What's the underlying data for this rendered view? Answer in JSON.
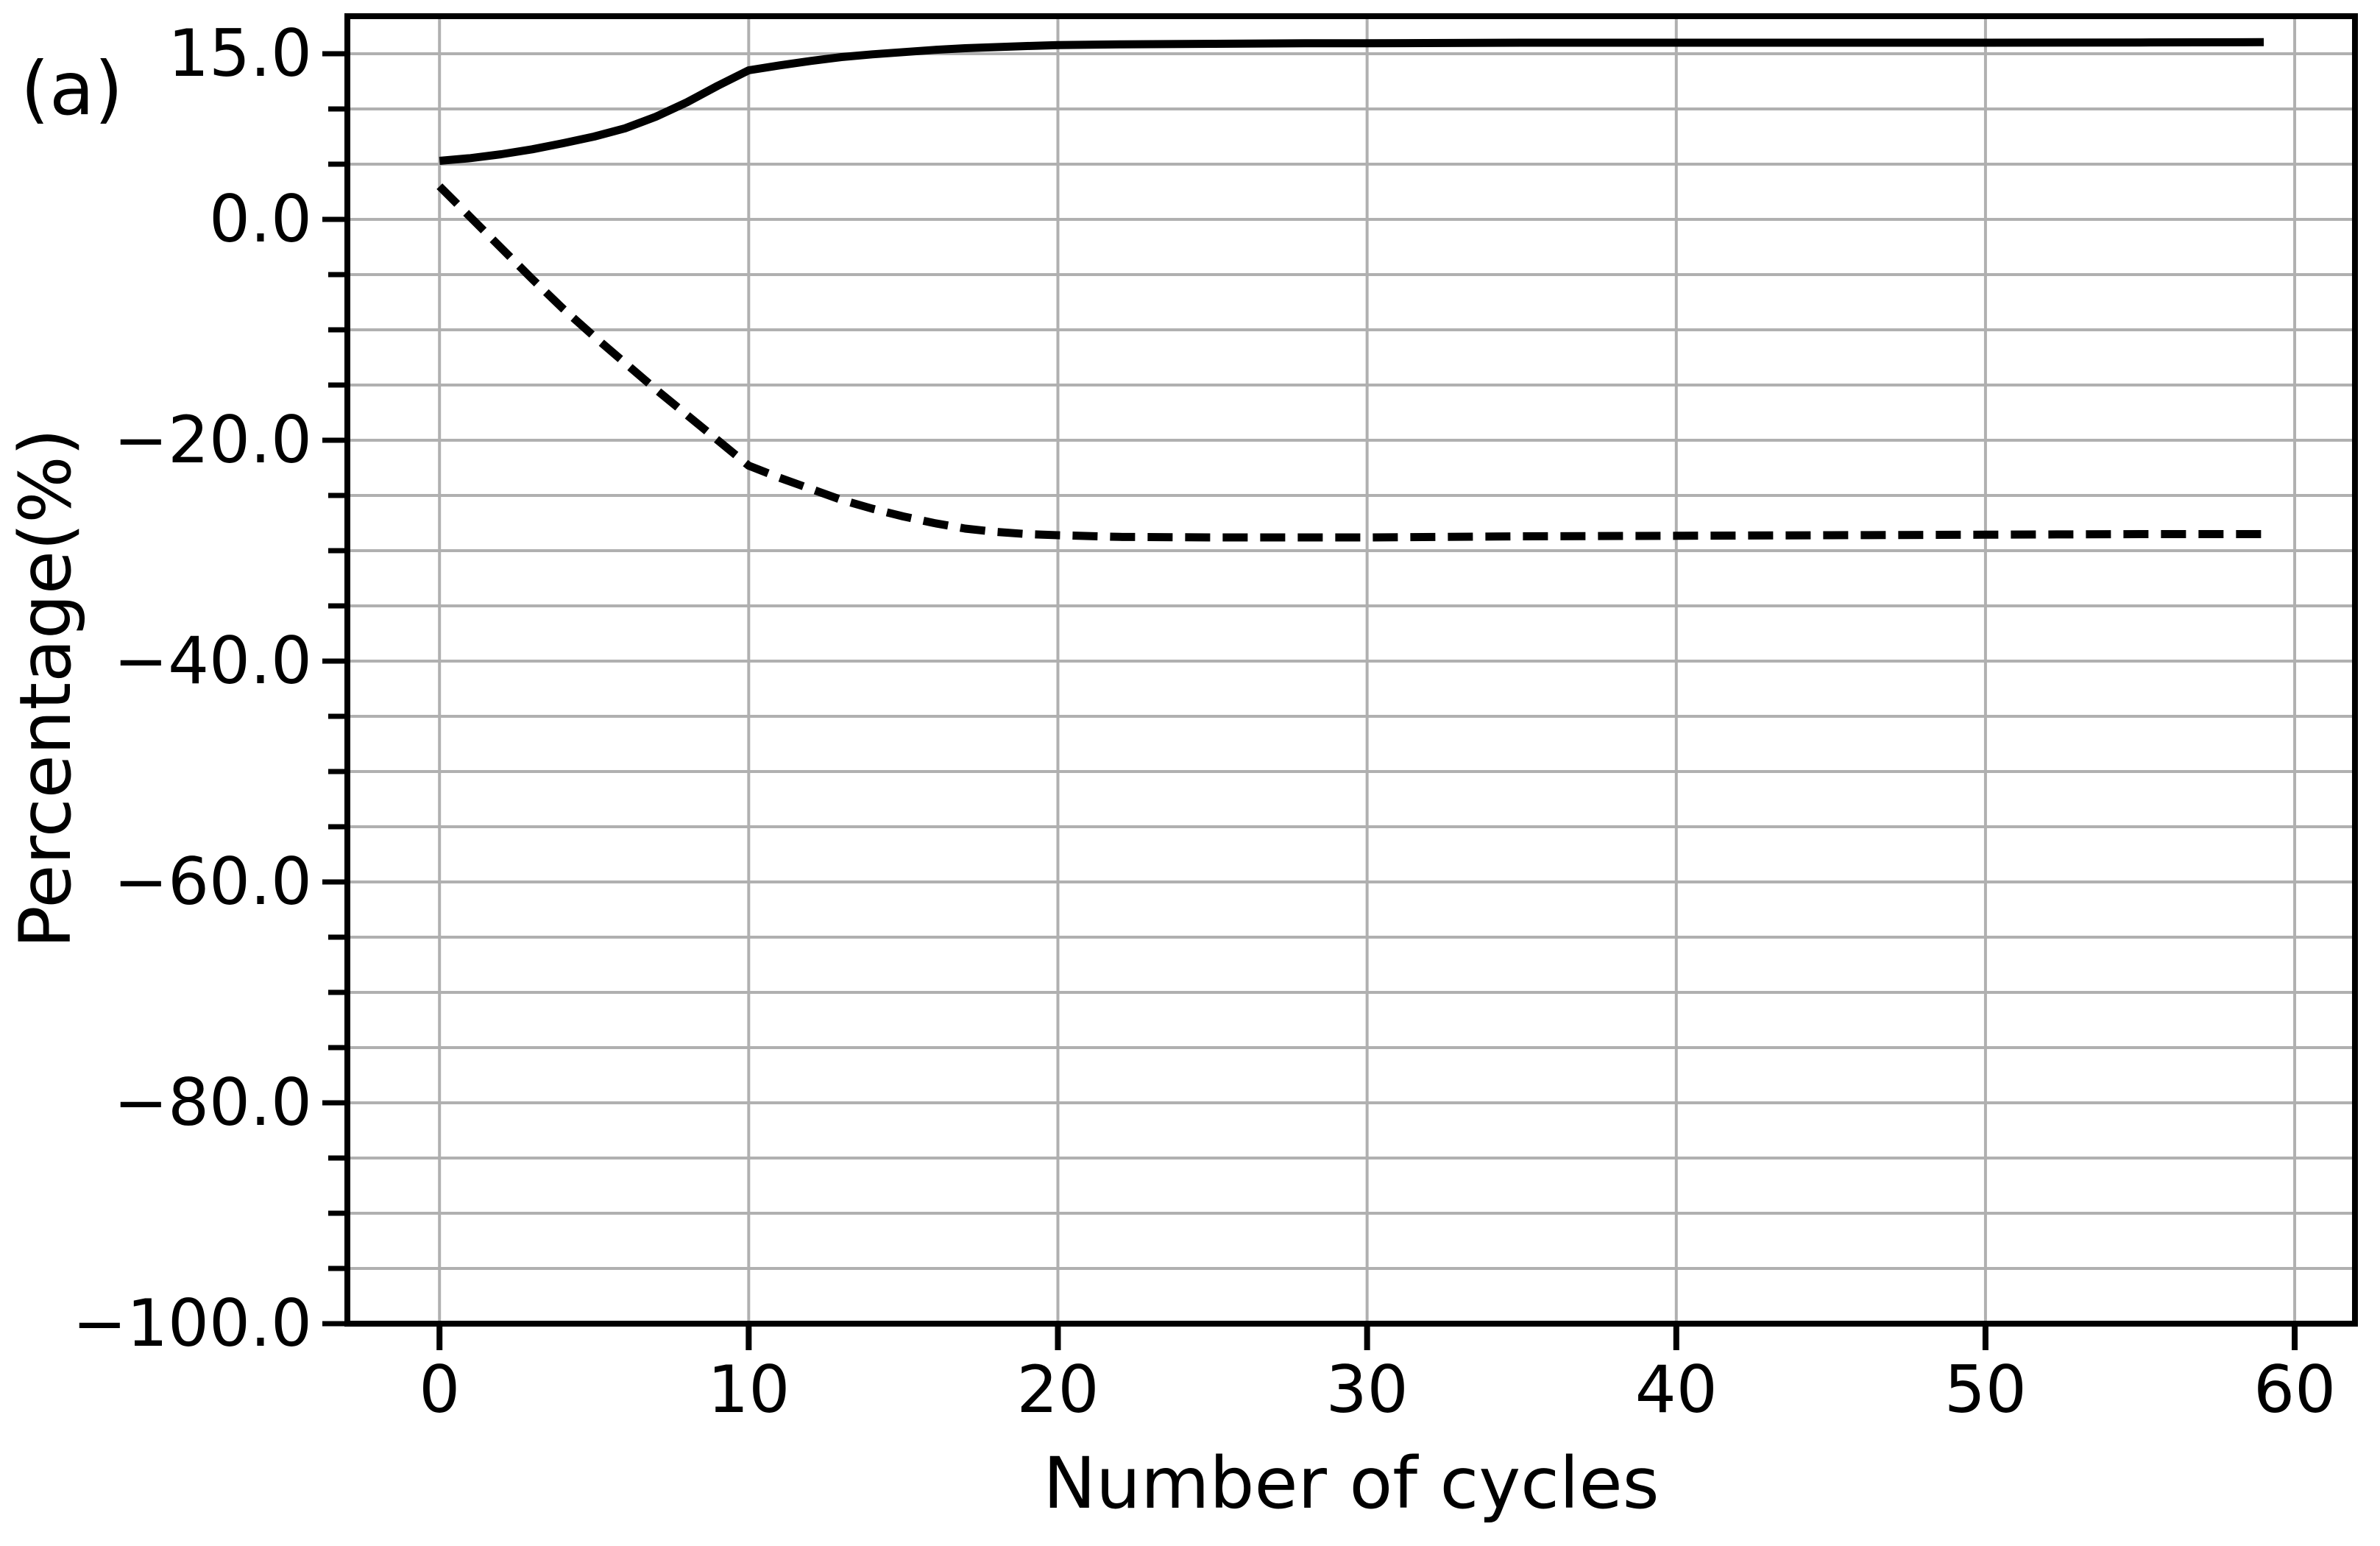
{
  "figure": {
    "panel_label": "(a)",
    "background": "#ffffff"
  },
  "chart_data": {
    "type": "line",
    "title": "",
    "panel_label": "(a)",
    "xlabel": "Number of cycles",
    "ylabel": "Percentage(%)",
    "xlim": [
      -2.98,
      61.95
    ],
    "ylim": [
      -100,
      18.4
    ],
    "grid": {
      "visible": true,
      "color": "#b0b0b0",
      "horizontal_step": 5,
      "vertical_step": 10,
      "legend": "none"
    },
    "axis_color": "#000000",
    "x_ticks": [
      {
        "v": 0,
        "label": "0"
      },
      {
        "v": 10,
        "label": "10"
      },
      {
        "v": 20,
        "label": "20"
      },
      {
        "v": 30,
        "label": "30"
      },
      {
        "v": 40,
        "label": "40"
      },
      {
        "v": 50,
        "label": "50"
      },
      {
        "v": 60,
        "label": "60"
      }
    ],
    "y_ticks": [
      {
        "v": 15,
        "label": "15.0"
      },
      {
        "v": 0,
        "label": "0.0"
      },
      {
        "v": -20,
        "label": "−20.0"
      },
      {
        "v": -40,
        "label": "−40.0"
      },
      {
        "v": -60,
        "label": "−60.0"
      },
      {
        "v": -80,
        "label": "−80.0"
      },
      {
        "v": -100,
        "label": "−100.0"
      }
    ],
    "y_minor_tick_step": 5,
    "series": [
      {
        "name": "solid-line",
        "style": "solid",
        "color": "#000000",
        "x": [
          0,
          1,
          2,
          3,
          4,
          5,
          6,
          7,
          8,
          9,
          10,
          11,
          12,
          13,
          14,
          15,
          16,
          17,
          18,
          19,
          20,
          22,
          25,
          28,
          30,
          35,
          40,
          45,
          50,
          55,
          59
        ],
        "y": [
          5.3,
          5.55,
          5.9,
          6.35,
          6.9,
          7.5,
          8.25,
          9.3,
          10.6,
          12.1,
          13.5,
          13.95,
          14.35,
          14.7,
          14.95,
          15.15,
          15.35,
          15.5,
          15.6,
          15.7,
          15.78,
          15.85,
          15.9,
          15.95,
          15.95,
          16.0,
          16.0,
          16.0,
          16.0,
          16.02,
          16.05
        ]
      },
      {
        "name": "dashed-line",
        "style": "dashed",
        "color": "#000000",
        "x": [
          0,
          1,
          2,
          3,
          4,
          5,
          6,
          7,
          8,
          9,
          10,
          11,
          12,
          13,
          14,
          15,
          16,
          17,
          18,
          19,
          20,
          22,
          25,
          28,
          30,
          35,
          40,
          45,
          50,
          55,
          59
        ],
        "y": [
          3.0,
          0.2,
          -2.6,
          -5.4,
          -8.1,
          -10.6,
          -13.0,
          -15.4,
          -17.7,
          -20.0,
          -22.3,
          -23.4,
          -24.4,
          -25.4,
          -26.2,
          -26.9,
          -27.5,
          -28.0,
          -28.3,
          -28.5,
          -28.6,
          -28.75,
          -28.8,
          -28.8,
          -28.8,
          -28.7,
          -28.65,
          -28.6,
          -28.55,
          -28.5,
          -28.5
        ]
      }
    ]
  }
}
